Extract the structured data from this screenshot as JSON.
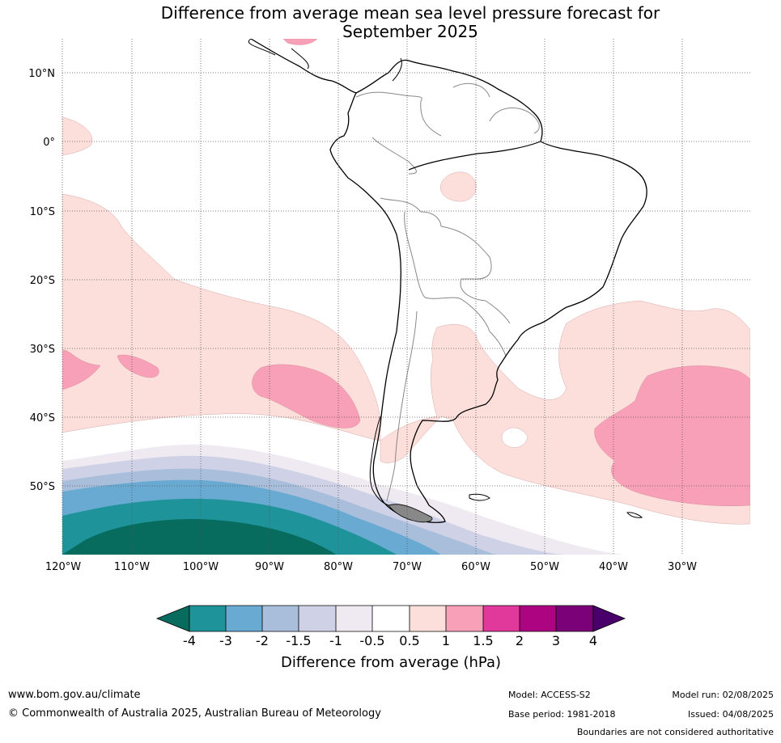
{
  "title": {
    "line1": "Difference from average mean sea level pressure forecast for",
    "line2": "September 2025"
  },
  "map": {
    "lat_labels": [
      "10°N",
      "0°",
      "10°S",
      "20°S",
      "30°S",
      "40°S",
      "50°S"
    ],
    "lon_labels": [
      "120°W",
      "110°W",
      "100°W",
      "90°W",
      "80°W",
      "70°W",
      "60°W",
      "50°W",
      "40°W",
      "30°W"
    ],
    "lat_range": [
      -60,
      15
    ],
    "lon_range": [
      -120,
      -20
    ],
    "grid": "dotted",
    "contour_colors": {
      "-4": "#076b5d",
      "-3": "#1e9399",
      "-2": "#69aad2",
      "-1.5": "#a8bedb",
      "-1": "#cfd2e6",
      "-0.5": "#efeaf1",
      "0.5": "#fcdfdb",
      "1": "#f8a0b7",
      "1.5": "#e0389b",
      "2": "#ad0582",
      "3": "#7a0177",
      "4": "#4a006a"
    }
  },
  "colorbar": {
    "ticks": [
      "-4",
      "-3",
      "-2",
      "-1.5",
      "-1",
      "-0.5",
      "0.5",
      "1",
      "1.5",
      "2",
      "3",
      "4"
    ],
    "colors": [
      "#076b5d",
      "#1e9399",
      "#69aad2",
      "#a8bedb",
      "#cfd2e6",
      "#efeaf1",
      "#ffffff",
      "#fcdfdb",
      "#f8a0b7",
      "#e0389b",
      "#ad0582",
      "#7a0177",
      "#4a006a"
    ],
    "label": "Difference from average (hPa)"
  },
  "footer": {
    "url": "www.bom.gov.au/climate",
    "copyright": "© Commonwealth of Australia 2025, Australian Bureau of Meteorology",
    "model": "Model: ACCESS-S2",
    "base_period": "Base period: 1981-2018",
    "model_run": "Model run: 02/08/2025",
    "issued": "Issued: 04/08/2025",
    "disclaimer": "Boundaries are not considered authoritative"
  }
}
